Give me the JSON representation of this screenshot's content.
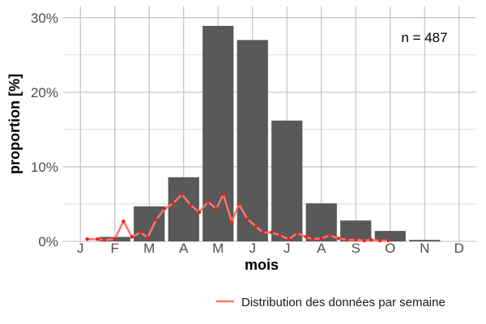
{
  "chart_data": {
    "type": "bar",
    "xlabel": "mois",
    "ylabel": "proportion [%]",
    "categories": [
      "J",
      "F",
      "M",
      "A",
      "M",
      "J",
      "J",
      "A",
      "S",
      "O",
      "N",
      "D"
    ],
    "values": [
      0,
      0.6,
      4.7,
      8.6,
      28.9,
      27.0,
      16.2,
      5.1,
      2.8,
      1.4,
      0.2,
      0
    ],
    "ylim": [
      0,
      31.5
    ],
    "yticks": [
      0,
      10,
      20,
      30
    ],
    "ytick_labels": [
      "0%",
      "10%",
      "20%",
      "30%"
    ],
    "grid": true,
    "annotation": "n = 487",
    "legend_position": "bottom-right",
    "series": [
      {
        "name": "Distribution des données par semaine",
        "type": "line",
        "x": [
          1.2,
          1.5,
          1.7,
          2.0,
          2.25,
          2.5,
          2.75,
          2.95,
          3.2,
          3.45,
          3.7,
          3.95,
          4.2,
          4.45,
          4.7,
          4.95,
          5.15,
          5.4,
          5.6,
          5.85,
          6.1,
          6.3,
          6.55,
          6.8,
          7.05,
          7.3,
          7.55,
          7.75,
          8.0,
          8.25,
          8.5,
          8.75,
          9.0,
          9.25,
          9.45,
          9.7,
          9.95
        ],
        "values": [
          0.3,
          0.3,
          0.2,
          0.3,
          2.7,
          0.6,
          1.2,
          0.5,
          2.9,
          4.4,
          5.1,
          6.3,
          4.9,
          3.9,
          5.3,
          4.4,
          6.3,
          2.6,
          5.0,
          3.0,
          2.0,
          1.2,
          1.2,
          0.8,
          0.3,
          1.1,
          0.6,
          0.3,
          0.4,
          0.8,
          0.4,
          0.2,
          0.2,
          0.1,
          0.2,
          0.1,
          0.1
        ]
      }
    ],
    "colors": {
      "bar": "#595959",
      "line": "#f8766d",
      "points": "#e8231c",
      "grid": "#bdbdbd"
    }
  }
}
